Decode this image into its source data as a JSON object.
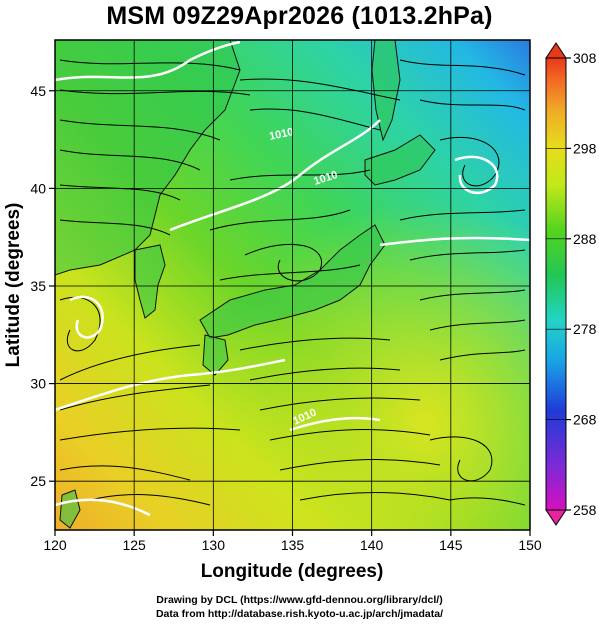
{
  "title": "MSM 09Z29Apr2026 (1013.2hPa)",
  "x_axis": {
    "label": "Longitude (degrees)",
    "ticks": [
      "120",
      "125",
      "130",
      "135",
      "140",
      "145",
      "150"
    ],
    "range": [
      120,
      150
    ]
  },
  "y_axis": {
    "label": "Latitude (degrees)",
    "ticks": [
      "25",
      "30",
      "35",
      "40",
      "45"
    ],
    "range": [
      22.5,
      47.6
    ]
  },
  "colorbar": {
    "ticks": [
      "258",
      "268",
      "278",
      "288",
      "298",
      "308"
    ],
    "range": [
      258,
      308
    ],
    "colors": [
      "#d60fbf",
      "#7a2bd6",
      "#1f3bd8",
      "#1aa4e6",
      "#22d4c4",
      "#22c655",
      "#55d41f",
      "#c2e81a",
      "#e6dd1a",
      "#f0ae28",
      "#f36a24",
      "#e63b1a"
    ]
  },
  "isobar_labels": [
    "1010",
    "1010",
    "1010"
  ],
  "credits": {
    "line1": "Drawing by DCL (https://www.gfd-dennou.org/library/dcl/)",
    "line2": "Data from http://database.rish.kyoto-u.ac.jp/arch/jmadata/"
  }
}
